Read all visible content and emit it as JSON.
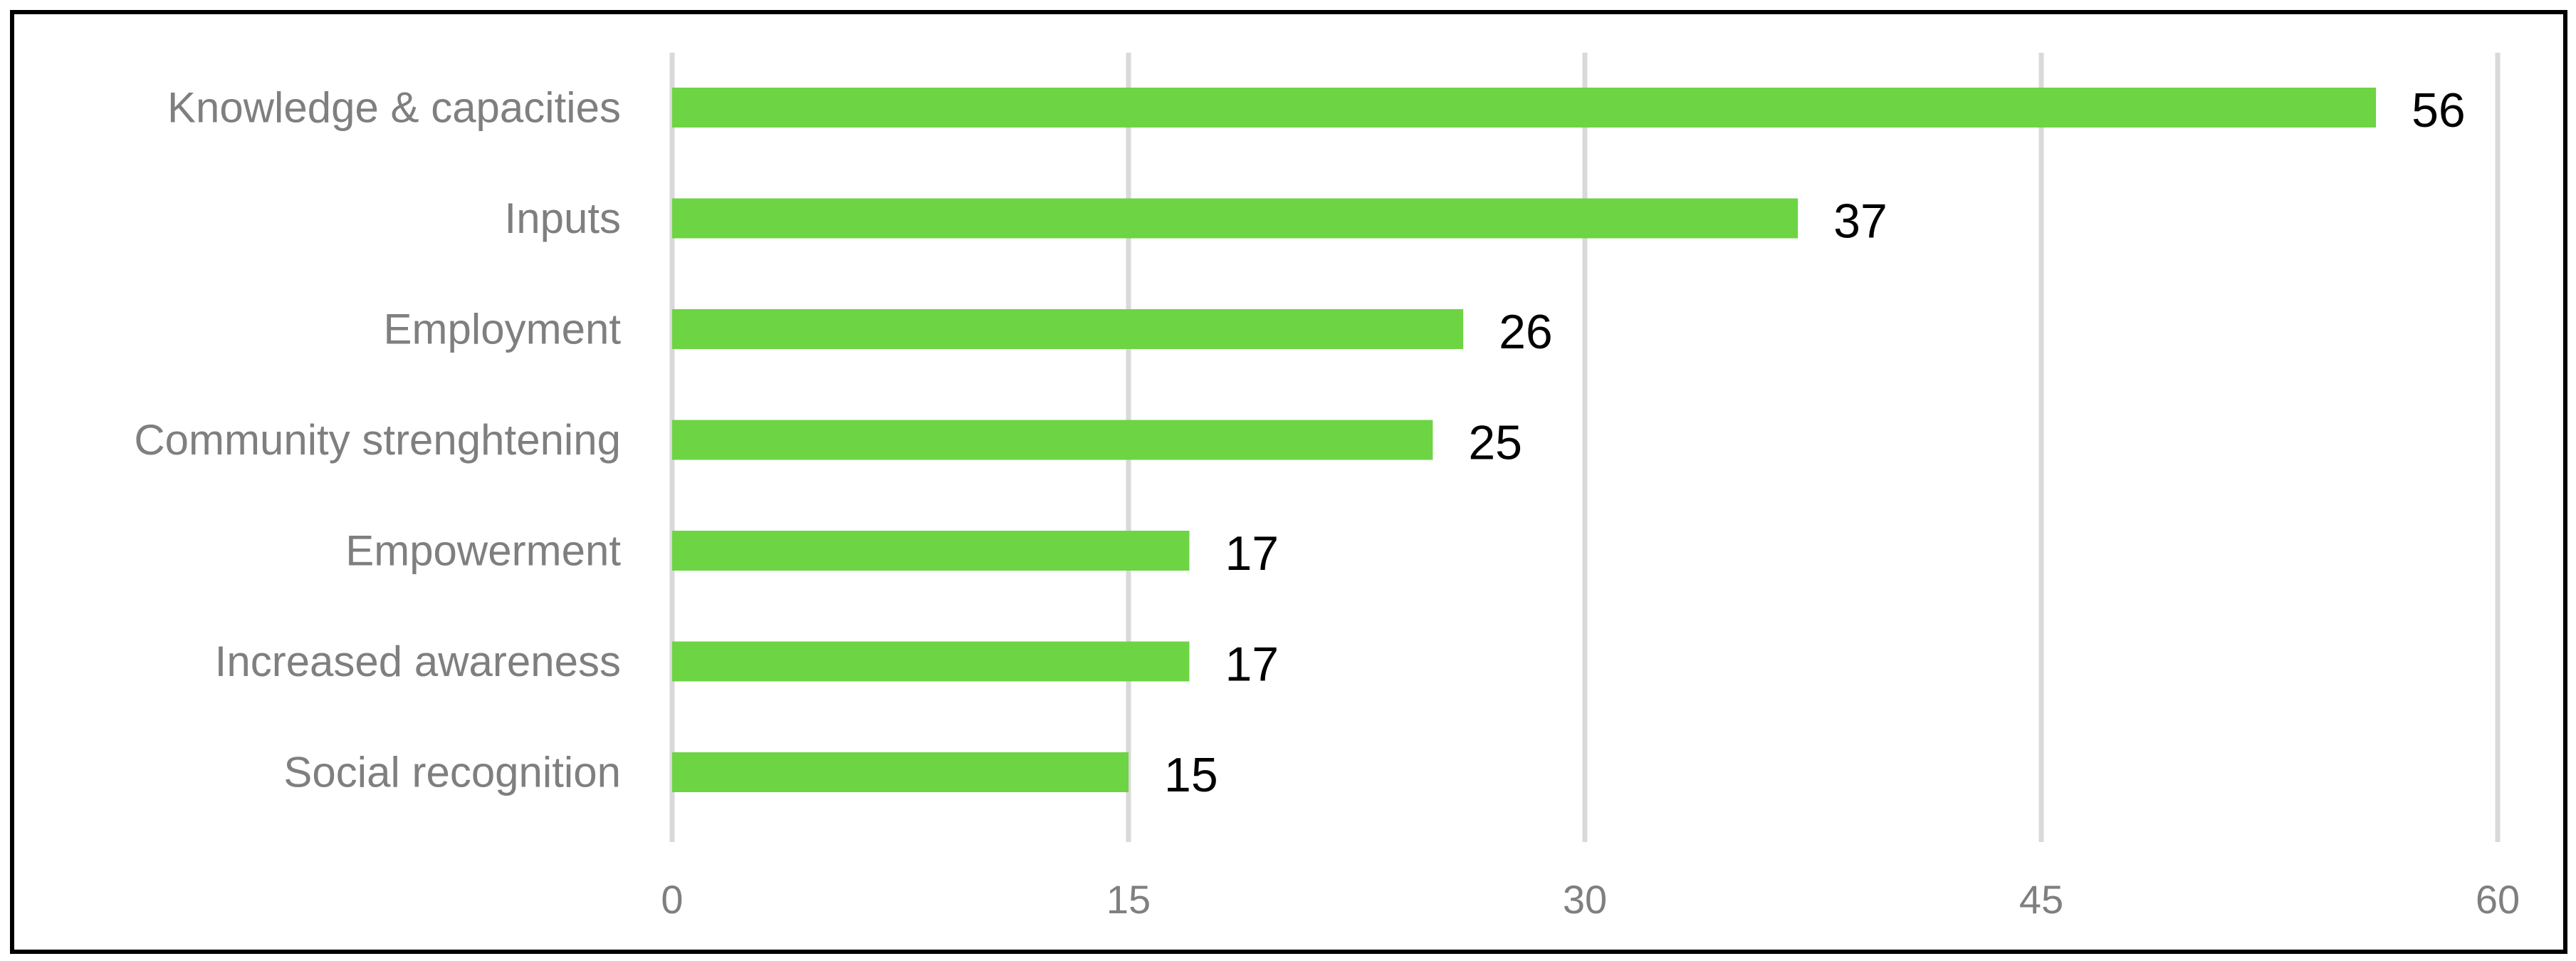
{
  "chart_data": {
    "type": "bar",
    "orientation": "horizontal",
    "categories": [
      "Knowledge & capacities",
      "Inputs",
      "Employment",
      "Community strenghtening",
      "Empowerment",
      "Increased awareness",
      "Social recognition"
    ],
    "values": [
      56,
      37,
      26,
      25,
      17,
      17,
      15
    ],
    "data_labels": [
      "56",
      "37",
      "26",
      "25",
      "17",
      "17",
      "15"
    ],
    "xlim": [
      0,
      60
    ],
    "x_ticks": [
      0,
      15,
      30,
      45,
      60
    ],
    "x_tick_labels": [
      "0",
      "15",
      "30",
      "45",
      "60"
    ],
    "title": "",
    "xlabel": "",
    "ylabel": "",
    "grid": "vertical",
    "legend": "none",
    "colors": {
      "bar": "#6dd444",
      "grid": "#d9d9d9",
      "axis_text": "#7f7f7f",
      "data_label": "#000000",
      "frame": "#000000"
    }
  }
}
